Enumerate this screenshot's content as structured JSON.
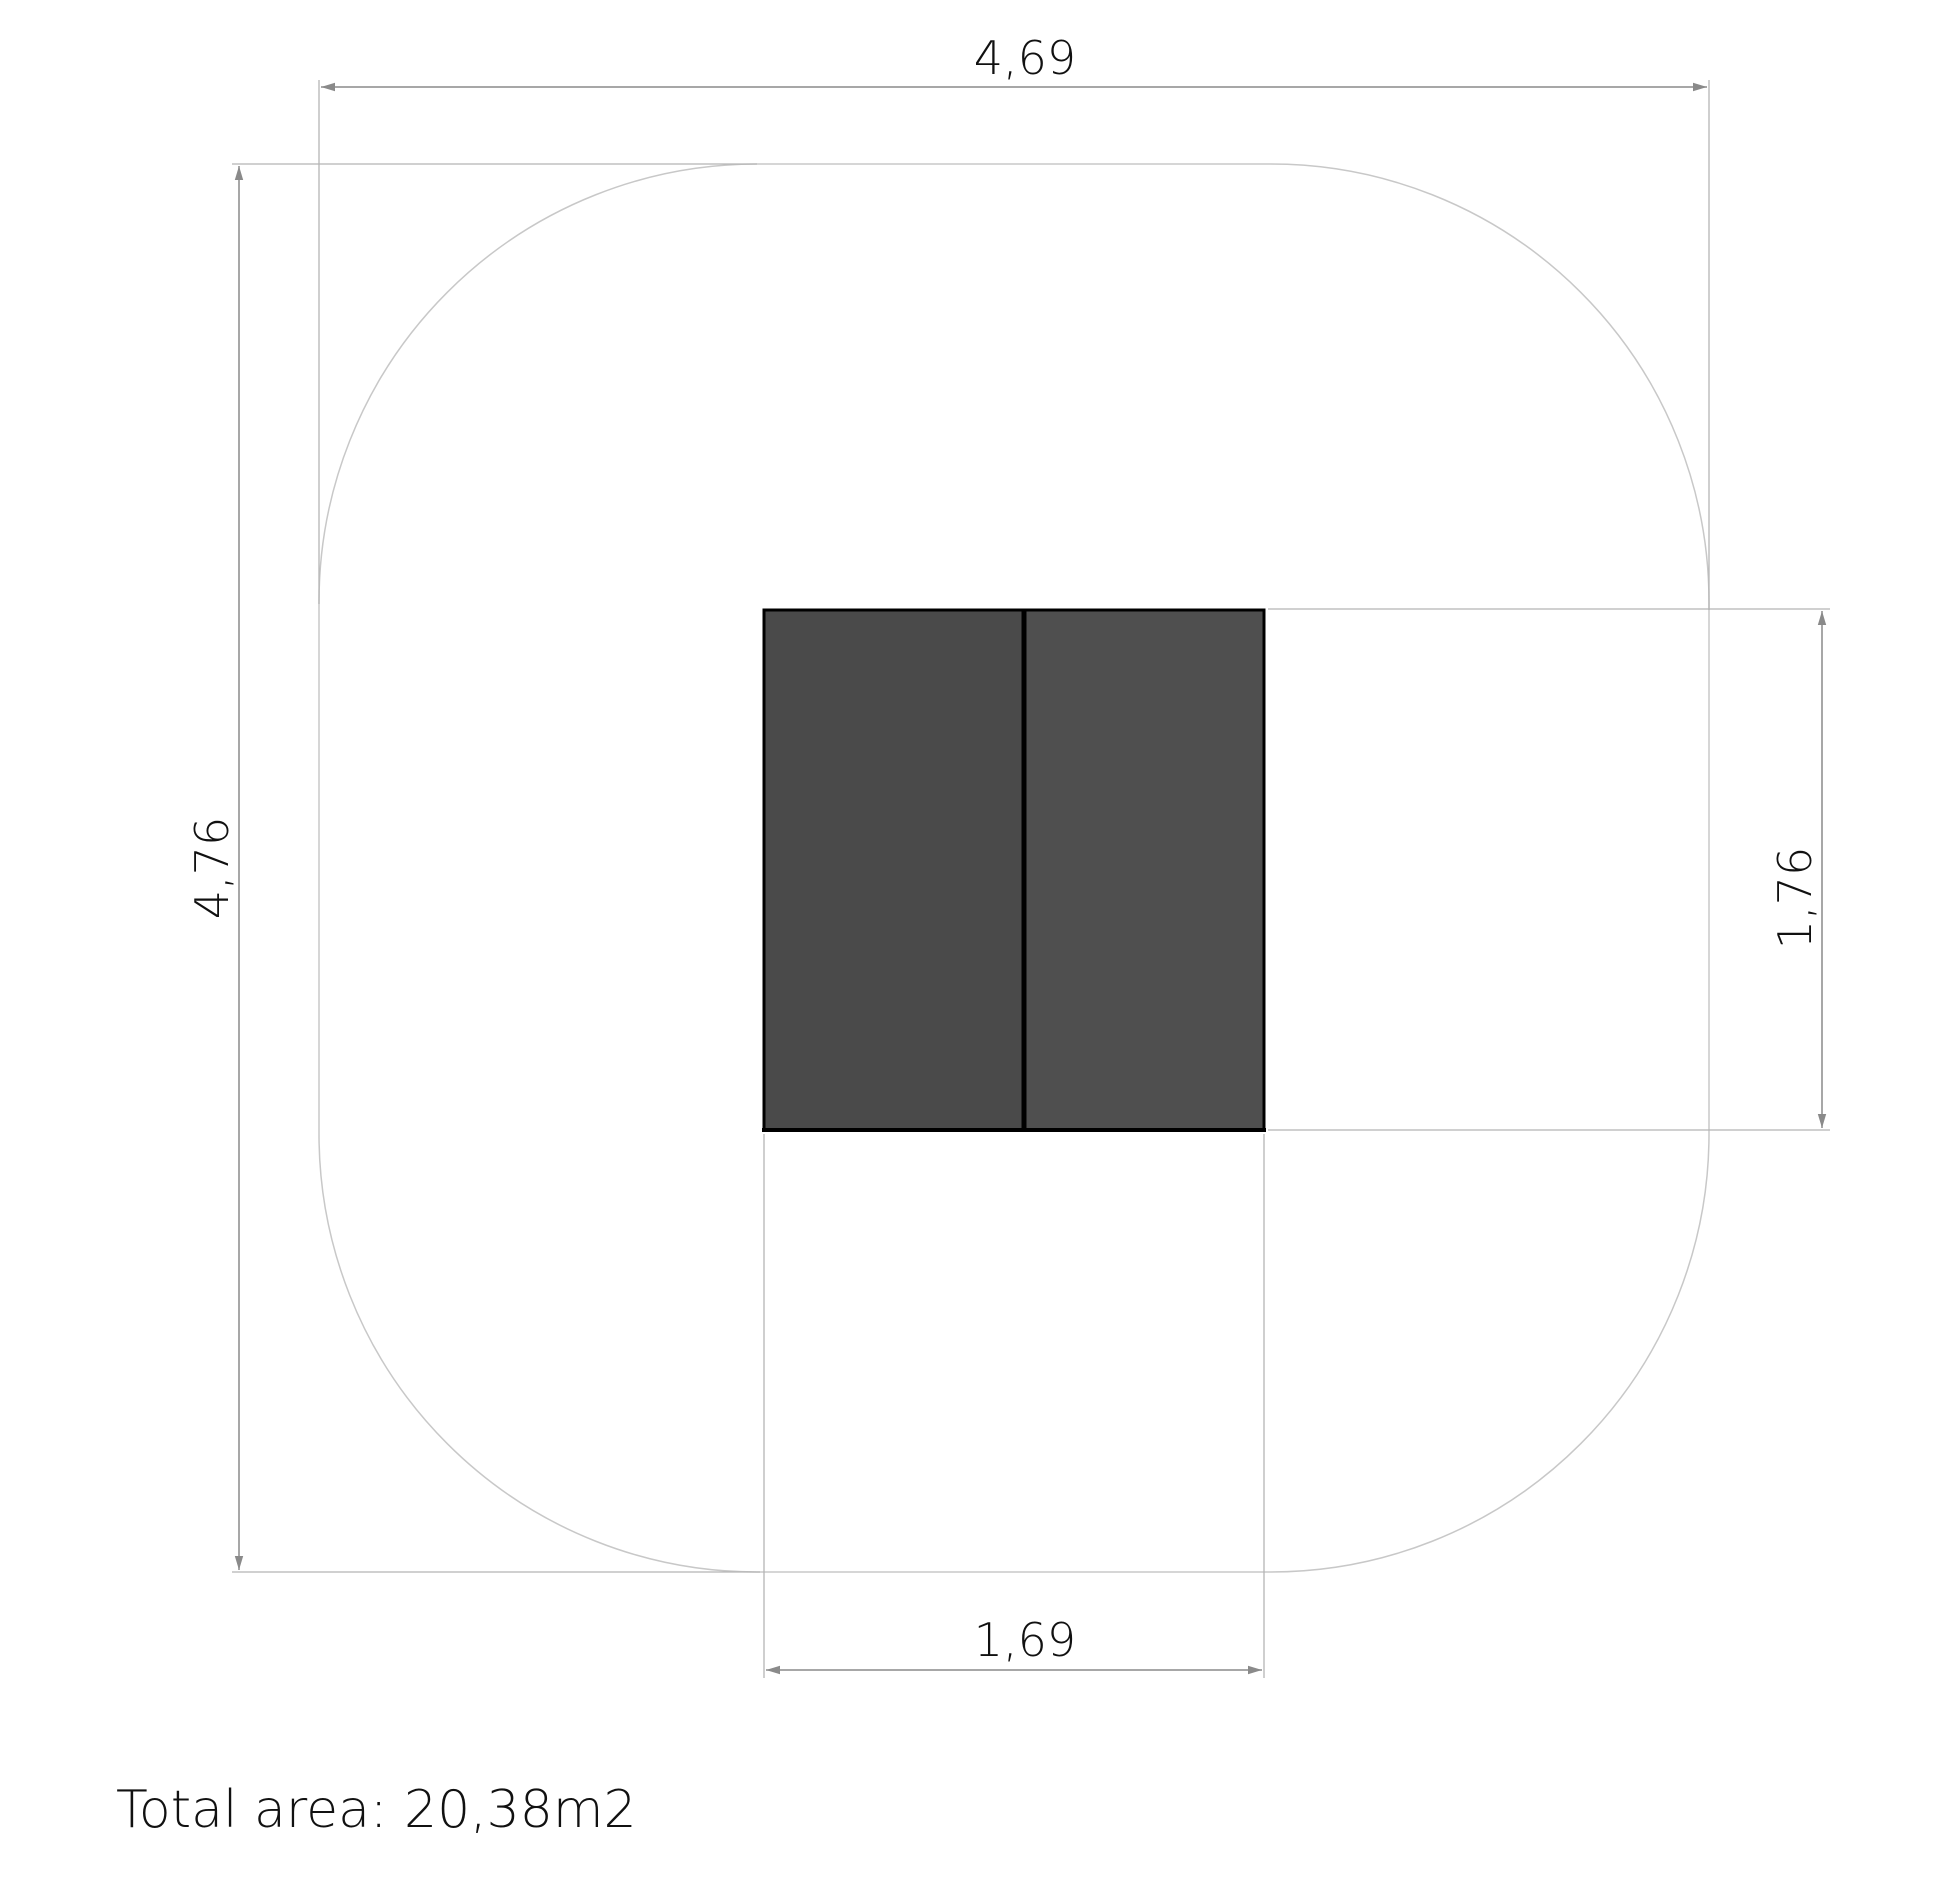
{
  "dimensions": {
    "overall_width": "4,69",
    "overall_height": "4,76",
    "unit_width": "1,69",
    "unit_height": "1,76"
  },
  "total_area": "Total area: 20,38m2",
  "colors": {
    "unit_fill_left": "#4a4a4a",
    "unit_fill_right": "#4f4f4f",
    "outline": "#000000",
    "safety_zone": "#c8c8c8",
    "dimension_line": "#8a8a8a"
  }
}
